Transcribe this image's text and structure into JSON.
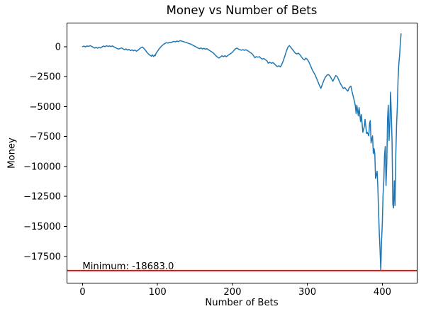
{
  "chart_data": {
    "type": "line",
    "title": "Money vs Number of Bets",
    "xlabel": "Number of Bets",
    "ylabel": "Money",
    "xlim": [
      -21.2,
      446
    ],
    "ylim": [
      -19700,
      2000
    ],
    "grid": false,
    "background_color": "#ffffff",
    "text_color": "#000000",
    "line_color": "#1f77b4",
    "line_width": 1.5,
    "x_ticks": [
      {
        "value": 0,
        "label": "0"
      },
      {
        "value": 100,
        "label": "100"
      },
      {
        "value": 200,
        "label": "200"
      },
      {
        "value": 300,
        "label": "300"
      },
      {
        "value": 400,
        "label": "400"
      }
    ],
    "y_ticks": [
      {
        "value": 0,
        "label": "0"
      },
      {
        "value": -2500,
        "label": "−2500"
      },
      {
        "value": -5000,
        "label": "−5000"
      },
      {
        "value": -7500,
        "label": "−7500"
      },
      {
        "value": -10000,
        "label": "−10000"
      },
      {
        "value": -12500,
        "label": "−12500"
      },
      {
        "value": -15000,
        "label": "−15000"
      },
      {
        "value": -17500,
        "label": "−17500"
      }
    ],
    "min_line": {
      "y": -18683,
      "color": "#ff0000",
      "label": "Minimum: -18683.0",
      "label_x": 0
    },
    "series": [
      {
        "name": "Money",
        "points": [
          [
            0,
            0
          ],
          [
            2,
            40
          ],
          [
            4,
            -20
          ],
          [
            6,
            60
          ],
          [
            8,
            20
          ],
          [
            10,
            80
          ],
          [
            12,
            30
          ],
          [
            14,
            -40
          ],
          [
            16,
            -120
          ],
          [
            18,
            -60
          ],
          [
            20,
            -130
          ],
          [
            22,
            -60
          ],
          [
            24,
            -110
          ],
          [
            26,
            -30
          ],
          [
            28,
            50
          ],
          [
            30,
            0
          ],
          [
            32,
            80
          ],
          [
            34,
            20
          ],
          [
            36,
            60
          ],
          [
            38,
            10
          ],
          [
            40,
            60
          ],
          [
            42,
            -20
          ],
          [
            44,
            -80
          ],
          [
            46,
            -150
          ],
          [
            48,
            -200
          ],
          [
            50,
            -160
          ],
          [
            52,
            -100
          ],
          [
            54,
            -180
          ],
          [
            56,
            -250
          ],
          [
            58,
            -190
          ],
          [
            60,
            -290
          ],
          [
            62,
            -230
          ],
          [
            64,
            -330
          ],
          [
            66,
            -270
          ],
          [
            68,
            -350
          ],
          [
            70,
            -290
          ],
          [
            72,
            -380
          ],
          [
            74,
            -300
          ],
          [
            76,
            -180
          ],
          [
            78,
            -90
          ],
          [
            80,
            -30
          ],
          [
            82,
            -150
          ],
          [
            84,
            -300
          ],
          [
            86,
            -480
          ],
          [
            88,
            -620
          ],
          [
            90,
            -720
          ],
          [
            92,
            -800
          ],
          [
            93,
            -680
          ],
          [
            94,
            -760
          ],
          [
            95,
            -820
          ],
          [
            96,
            -700
          ],
          [
            97,
            -760
          ],
          [
            98,
            -580
          ],
          [
            99,
            -480
          ],
          [
            100,
            -380
          ],
          [
            102,
            -200
          ],
          [
            104,
            -60
          ],
          [
            106,
            80
          ],
          [
            108,
            180
          ],
          [
            110,
            260
          ],
          [
            112,
            330
          ],
          [
            114,
            300
          ],
          [
            116,
            370
          ],
          [
            118,
            330
          ],
          [
            120,
            400
          ],
          [
            122,
            440
          ],
          [
            124,
            400
          ],
          [
            126,
            460
          ],
          [
            128,
            430
          ],
          [
            130,
            500
          ],
          [
            132,
            470
          ],
          [
            134,
            430
          ],
          [
            136,
            390
          ],
          [
            138,
            360
          ],
          [
            140,
            310
          ],
          [
            142,
            260
          ],
          [
            144,
            220
          ],
          [
            146,
            160
          ],
          [
            148,
            90
          ],
          [
            150,
            30
          ],
          [
            152,
            -40
          ],
          [
            154,
            -110
          ],
          [
            156,
            -170
          ],
          [
            158,
            -110
          ],
          [
            160,
            -190
          ],
          [
            162,
            -140
          ],
          [
            164,
            -220
          ],
          [
            166,
            -170
          ],
          [
            168,
            -260
          ],
          [
            170,
            -340
          ],
          [
            172,
            -420
          ],
          [
            174,
            -500
          ],
          [
            176,
            -620
          ],
          [
            178,
            -760
          ],
          [
            180,
            -870
          ],
          [
            182,
            -950
          ],
          [
            184,
            -860
          ],
          [
            186,
            -760
          ],
          [
            188,
            -830
          ],
          [
            190,
            -760
          ],
          [
            192,
            -840
          ],
          [
            194,
            -730
          ],
          [
            196,
            -640
          ],
          [
            198,
            -560
          ],
          [
            200,
            -470
          ],
          [
            202,
            -320
          ],
          [
            204,
            -180
          ],
          [
            206,
            -120
          ],
          [
            208,
            -200
          ],
          [
            210,
            -250
          ],
          [
            212,
            -300
          ],
          [
            214,
            -250
          ],
          [
            216,
            -310
          ],
          [
            218,
            -260
          ],
          [
            220,
            -330
          ],
          [
            222,
            -410
          ],
          [
            224,
            -500
          ],
          [
            226,
            -580
          ],
          [
            228,
            -740
          ],
          [
            230,
            -920
          ],
          [
            232,
            -830
          ],
          [
            234,
            -880
          ],
          [
            236,
            -840
          ],
          [
            238,
            -960
          ],
          [
            240,
            -1040
          ],
          [
            242,
            -990
          ],
          [
            244,
            -1090
          ],
          [
            246,
            -1180
          ],
          [
            248,
            -1390
          ],
          [
            250,
            -1300
          ],
          [
            252,
            -1390
          ],
          [
            254,
            -1330
          ],
          [
            256,
            -1430
          ],
          [
            258,
            -1570
          ],
          [
            260,
            -1660
          ],
          [
            262,
            -1600
          ],
          [
            264,
            -1690
          ],
          [
            266,
            -1460
          ],
          [
            268,
            -1150
          ],
          [
            270,
            -780
          ],
          [
            272,
            -380
          ],
          [
            274,
            -60
          ],
          [
            276,
            90
          ],
          [
            278,
            -70
          ],
          [
            280,
            -230
          ],
          [
            282,
            -390
          ],
          [
            284,
            -550
          ],
          [
            286,
            -610
          ],
          [
            288,
            -540
          ],
          [
            290,
            -670
          ],
          [
            292,
            -850
          ],
          [
            294,
            -1010
          ],
          [
            296,
            -1110
          ],
          [
            298,
            -960
          ],
          [
            300,
            -1070
          ],
          [
            302,
            -1270
          ],
          [
            304,
            -1560
          ],
          [
            306,
            -1860
          ],
          [
            308,
            -2110
          ],
          [
            310,
            -2310
          ],
          [
            312,
            -2610
          ],
          [
            314,
            -2910
          ],
          [
            316,
            -3210
          ],
          [
            318,
            -3480
          ],
          [
            320,
            -3150
          ],
          [
            322,
            -2810
          ],
          [
            324,
            -2550
          ],
          [
            326,
            -2390
          ],
          [
            328,
            -2330
          ],
          [
            330,
            -2430
          ],
          [
            332,
            -2660
          ],
          [
            334,
            -2890
          ],
          [
            336,
            -2630
          ],
          [
            338,
            -2410
          ],
          [
            340,
            -2510
          ],
          [
            342,
            -2790
          ],
          [
            344,
            -3060
          ],
          [
            346,
            -3290
          ],
          [
            348,
            -3500
          ],
          [
            350,
            -3410
          ],
          [
            352,
            -3590
          ],
          [
            354,
            -3710
          ],
          [
            356,
            -3410
          ],
          [
            358,
            -3290
          ],
          [
            360,
            -3860
          ],
          [
            362,
            -4360
          ],
          [
            364,
            -4910
          ],
          [
            365,
            -5580
          ],
          [
            366,
            -4890
          ],
          [
            368,
            -5770
          ],
          [
            369,
            -5080
          ],
          [
            371,
            -6260
          ],
          [
            372,
            -5670
          ],
          [
            374,
            -7150
          ],
          [
            376,
            -6660
          ],
          [
            377,
            -6070
          ],
          [
            379,
            -7250
          ],
          [
            380,
            -7150
          ],
          [
            382,
            -7450
          ],
          [
            383,
            -6400
          ],
          [
            384,
            -6170
          ],
          [
            385,
            -8040
          ],
          [
            386,
            -7700
          ],
          [
            387,
            -7450
          ],
          [
            388,
            -8930
          ],
          [
            389,
            -8500
          ],
          [
            390,
            -8930
          ],
          [
            391,
            -11000
          ],
          [
            392,
            -10700
          ],
          [
            393,
            -10400
          ],
          [
            394,
            -11600
          ],
          [
            395,
            -13750
          ],
          [
            396,
            -15530
          ],
          [
            397,
            -17000
          ],
          [
            398,
            -18683
          ],
          [
            399,
            -16200
          ],
          [
            400,
            -14700
          ],
          [
            401,
            -12350
          ],
          [
            402,
            -11200
          ],
          [
            403,
            -9030
          ],
          [
            404,
            -8330
          ],
          [
            405,
            -11590
          ],
          [
            406,
            -9700
          ],
          [
            407,
            -5970
          ],
          [
            408,
            -4890
          ],
          [
            409,
            -7840
          ],
          [
            410,
            -6500
          ],
          [
            411,
            -3800
          ],
          [
            412,
            -5500
          ],
          [
            413,
            -7840
          ],
          [
            414,
            -13160
          ],
          [
            415,
            -13460
          ],
          [
            416,
            -11190
          ],
          [
            417,
            -13260
          ],
          [
            418,
            -9030
          ],
          [
            419,
            -6500
          ],
          [
            420,
            -5080
          ],
          [
            421,
            -2720
          ],
          [
            422,
            -1500
          ],
          [
            423,
            -770
          ],
          [
            424,
            200
          ],
          [
            425,
            1065
          ]
        ]
      }
    ]
  }
}
